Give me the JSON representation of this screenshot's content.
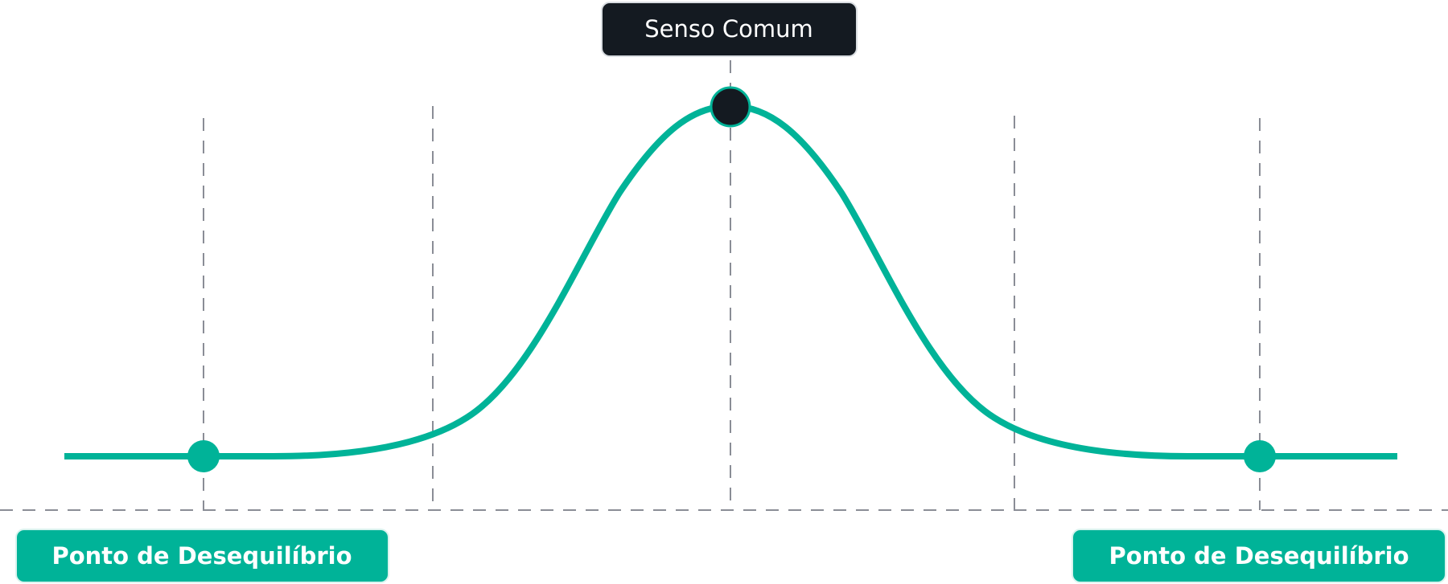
{
  "top_label": "Senso Comum",
  "bottom_labels": [
    "Ponto de Desequilíbrio",
    "Ponto de Desequilíbrio"
  ]
}
